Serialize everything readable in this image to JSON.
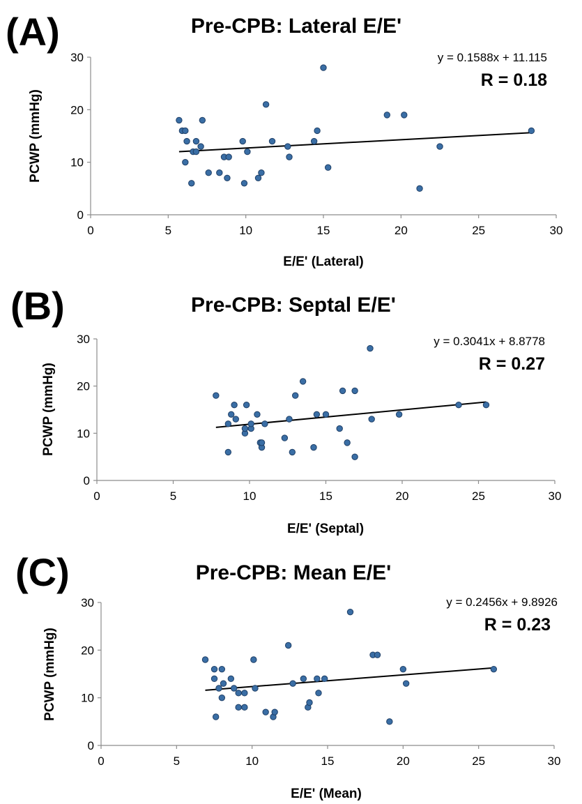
{
  "colors": {
    "marker": "#3a6ea5",
    "marker_edge": "#1f3f66",
    "trendline": "#000000",
    "axis": "#8c8c8c"
  },
  "chart_data": [
    {
      "panel": "(A)",
      "type": "scatter",
      "title": "Pre-CPB: Lateral E/E'",
      "xlabel": "E/E' (Lateral)",
      "ylabel": "PCWP (mmHg)",
      "xlim": [
        0,
        30
      ],
      "ylim": [
        0,
        30
      ],
      "xticks": [
        0,
        5,
        10,
        15,
        20,
        25,
        30
      ],
      "yticks": [
        0,
        10,
        20,
        30
      ],
      "grid": false,
      "equation": "y = 0.1588x + 11.115",
      "r_label": "R = 0.18",
      "trendline": {
        "slope": 0.1588,
        "intercept": 11.115,
        "x_range": [
          5.7,
          28.4
        ]
      },
      "points": [
        [
          5.7,
          18
        ],
        [
          5.9,
          16
        ],
        [
          6.1,
          16
        ],
        [
          6.2,
          14
        ],
        [
          6.1,
          10
        ],
        [
          6.5,
          6
        ],
        [
          6.6,
          12
        ],
        [
          6.8,
          14
        ],
        [
          6.8,
          12
        ],
        [
          7.1,
          13
        ],
        [
          7.2,
          18
        ],
        [
          7.6,
          8
        ],
        [
          8.3,
          8
        ],
        [
          8.6,
          11
        ],
        [
          8.9,
          11
        ],
        [
          8.8,
          7
        ],
        [
          9.8,
          14
        ],
        [
          9.9,
          6
        ],
        [
          10.1,
          12
        ],
        [
          10.8,
          7
        ],
        [
          11.0,
          8
        ],
        [
          11.3,
          21
        ],
        [
          11.7,
          14
        ],
        [
          12.7,
          13
        ],
        [
          12.8,
          11
        ],
        [
          14.4,
          14
        ],
        [
          14.6,
          16
        ],
        [
          15.0,
          28
        ],
        [
          15.3,
          9
        ],
        [
          19.1,
          19
        ],
        [
          20.2,
          19
        ],
        [
          21.2,
          5
        ],
        [
          22.5,
          13
        ],
        [
          28.4,
          16
        ]
      ]
    },
    {
      "panel": "(B)",
      "type": "scatter",
      "title": "Pre-CPB: Septal E/E'",
      "xlabel": "E/E' (Septal)",
      "ylabel": "PCWP (mmHg)",
      "xlim": [
        0,
        30
      ],
      "ylim": [
        0,
        30
      ],
      "xticks": [
        0,
        5,
        10,
        15,
        20,
        25,
        30
      ],
      "yticks": [
        0,
        10,
        20,
        30
      ],
      "grid": false,
      "equation": "y = 0.3041x + 8.8778",
      "r_label": "R = 0.27",
      "trendline": {
        "slope": 0.3041,
        "intercept": 8.8778,
        "x_range": [
          7.8,
          25.5
        ]
      },
      "points": [
        [
          7.8,
          18
        ],
        [
          8.6,
          6
        ],
        [
          8.6,
          12
        ],
        [
          8.8,
          14
        ],
        [
          9.0,
          16
        ],
        [
          9.1,
          13
        ],
        [
          9.7,
          10
        ],
        [
          9.7,
          11
        ],
        [
          9.8,
          16
        ],
        [
          10.1,
          11
        ],
        [
          10.1,
          12
        ],
        [
          10.5,
          14
        ],
        [
          10.7,
          8
        ],
        [
          10.8,
          7
        ],
        [
          10.8,
          8
        ],
        [
          11.0,
          12
        ],
        [
          12.3,
          9
        ],
        [
          12.6,
          13
        ],
        [
          12.8,
          6
        ],
        [
          13.0,
          18
        ],
        [
          13.5,
          21
        ],
        [
          14.2,
          7
        ],
        [
          14.4,
          14
        ],
        [
          15.0,
          14
        ],
        [
          15.9,
          11
        ],
        [
          16.1,
          19
        ],
        [
          16.4,
          8
        ],
        [
          16.9,
          19
        ],
        [
          16.9,
          5
        ],
        [
          17.9,
          28
        ],
        [
          18.0,
          13
        ],
        [
          19.8,
          14
        ],
        [
          23.7,
          16
        ],
        [
          25.5,
          16
        ]
      ]
    },
    {
      "panel": "(C)",
      "type": "scatter",
      "title": "Pre-CPB: Mean E/E'",
      "xlabel": "E/E' (Mean)",
      "ylabel": "PCWP (mmHg)",
      "xlim": [
        0,
        30
      ],
      "ylim": [
        0,
        30
      ],
      "xticks": [
        0,
        5,
        10,
        15,
        20,
        25,
        30
      ],
      "yticks": [
        0,
        10,
        20,
        30
      ],
      "grid": false,
      "equation": "y = 0.2456x + 9.8926",
      "r_label": "R = 0.23",
      "trendline": {
        "slope": 0.2456,
        "intercept": 9.8926,
        "x_range": [
          6.9,
          26.0
        ]
      },
      "points": [
        [
          6.9,
          18
        ],
        [
          7.5,
          16
        ],
        [
          7.5,
          14
        ],
        [
          7.6,
          6
        ],
        [
          7.8,
          12
        ],
        [
          8.0,
          16
        ],
        [
          8.0,
          10
        ],
        [
          8.1,
          13
        ],
        [
          8.6,
          14
        ],
        [
          8.8,
          12
        ],
        [
          9.1,
          11
        ],
        [
          9.1,
          8
        ],
        [
          9.5,
          11
        ],
        [
          9.5,
          8
        ],
        [
          10.1,
          18
        ],
        [
          10.2,
          12
        ],
        [
          10.9,
          7
        ],
        [
          11.4,
          6
        ],
        [
          11.5,
          7
        ],
        [
          12.4,
          21
        ],
        [
          12.7,
          13
        ],
        [
          13.4,
          14
        ],
        [
          13.7,
          8
        ],
        [
          13.8,
          9
        ],
        [
          14.3,
          14
        ],
        [
          14.4,
          11
        ],
        [
          14.8,
          14
        ],
        [
          16.5,
          28
        ],
        [
          18.0,
          19
        ],
        [
          18.3,
          19
        ],
        [
          19.1,
          5
        ],
        [
          20.0,
          16
        ],
        [
          20.2,
          13
        ],
        [
          26.0,
          16
        ]
      ]
    }
  ]
}
